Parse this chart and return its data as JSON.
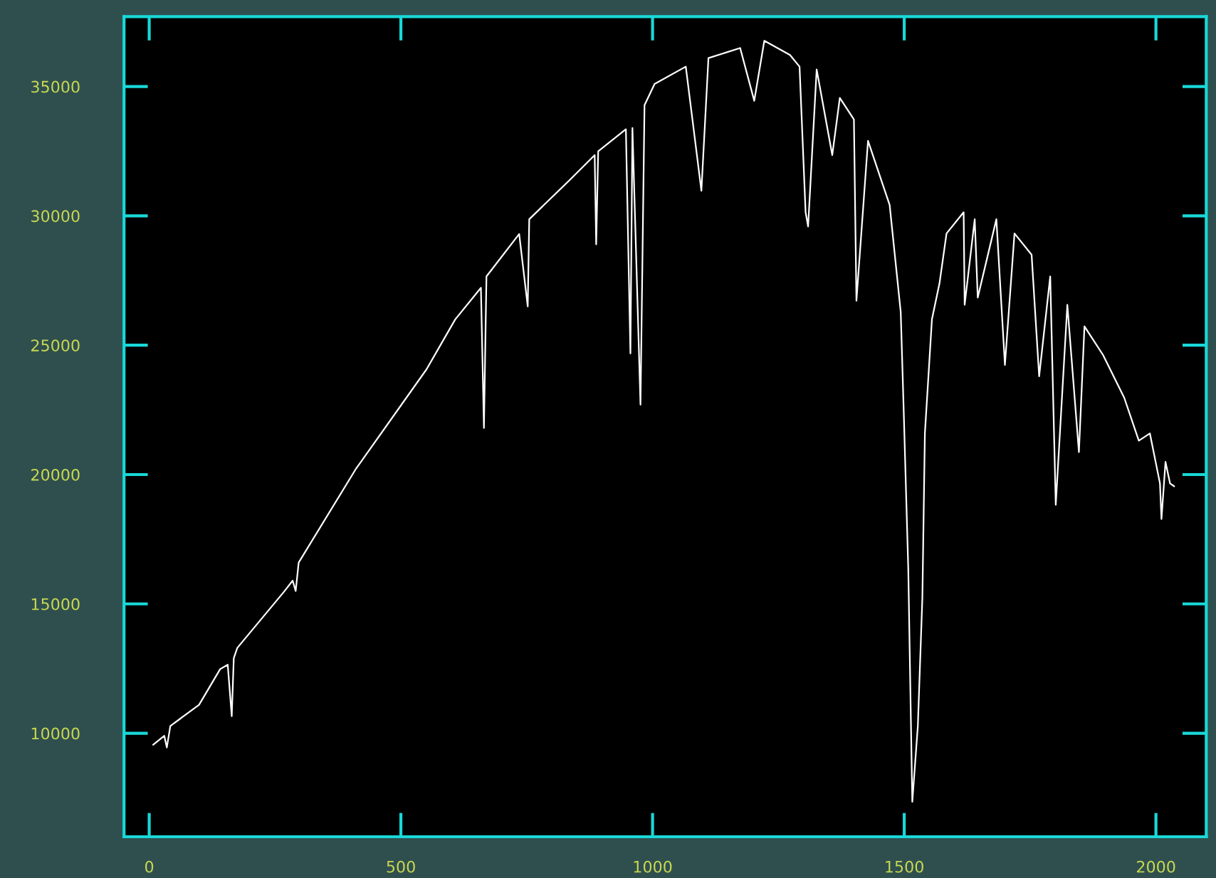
{
  "chart_data": {
    "type": "line",
    "xlim": [
      -50,
      2100
    ],
    "ylim": [
      6000,
      37700
    ],
    "xticks": [
      0,
      500,
      1000,
      1500,
      2000
    ],
    "yticks": [
      10000,
      15000,
      20000,
      25000,
      30000,
      35000
    ],
    "marker": "none",
    "line_style": "solid",
    "series": [
      {
        "color": "#ffffff",
        "x": [
          8,
          30,
          35,
          42,
          99,
          141,
          156,
          164,
          168,
          175,
          269,
          285,
          291,
          297,
          410,
          551,
          608,
          659,
          665,
          670,
          735,
          752,
          755,
          834,
          885,
          888,
          892,
          947,
          956,
          960,
          976,
          984,
          1004,
          1066,
          1097,
          1111,
          1174,
          1202,
          1222,
          1273,
          1292,
          1304,
          1309,
          1326,
          1357,
          1372,
          1400,
          1405,
          1428,
          1471,
          1493,
          1499,
          1508,
          1516,
          1527,
          1536,
          1541,
          1555,
          1570,
          1584,
          1618,
          1620,
          1640,
          1646,
          1683,
          1700,
          1719,
          1753,
          1768,
          1790,
          1801,
          1824,
          1847,
          1858,
          1895,
          1937,
          1966,
          1988,
          2008,
          2011,
          2019,
          2028,
          2036
        ],
        "values": [
          9560,
          9900,
          9450,
          10280,
          11100,
          12480,
          12650,
          10660,
          12900,
          13300,
          15500,
          15900,
          15500,
          16600,
          20200,
          24070,
          26000,
          27220,
          21800,
          27660,
          29300,
          26500,
          29870,
          31360,
          32350,
          28900,
          32500,
          33350,
          24680,
          33400,
          22700,
          34280,
          35100,
          35770,
          30970,
          36100,
          36490,
          34450,
          36770,
          36220,
          35770,
          30140,
          29590,
          35660,
          32350,
          34560,
          33730,
          26720,
          32900,
          30420,
          26280,
          22420,
          16350,
          7350,
          10280,
          15240,
          21590,
          26000,
          27390,
          29320,
          30140,
          26560,
          29870,
          26840,
          29870,
          24240,
          29320,
          28500,
          23800,
          27660,
          18830,
          26560,
          20870,
          25730,
          24620,
          22970,
          21310,
          21590,
          19660,
          18280,
          20490,
          19660,
          19550
        ]
      }
    ]
  }
}
